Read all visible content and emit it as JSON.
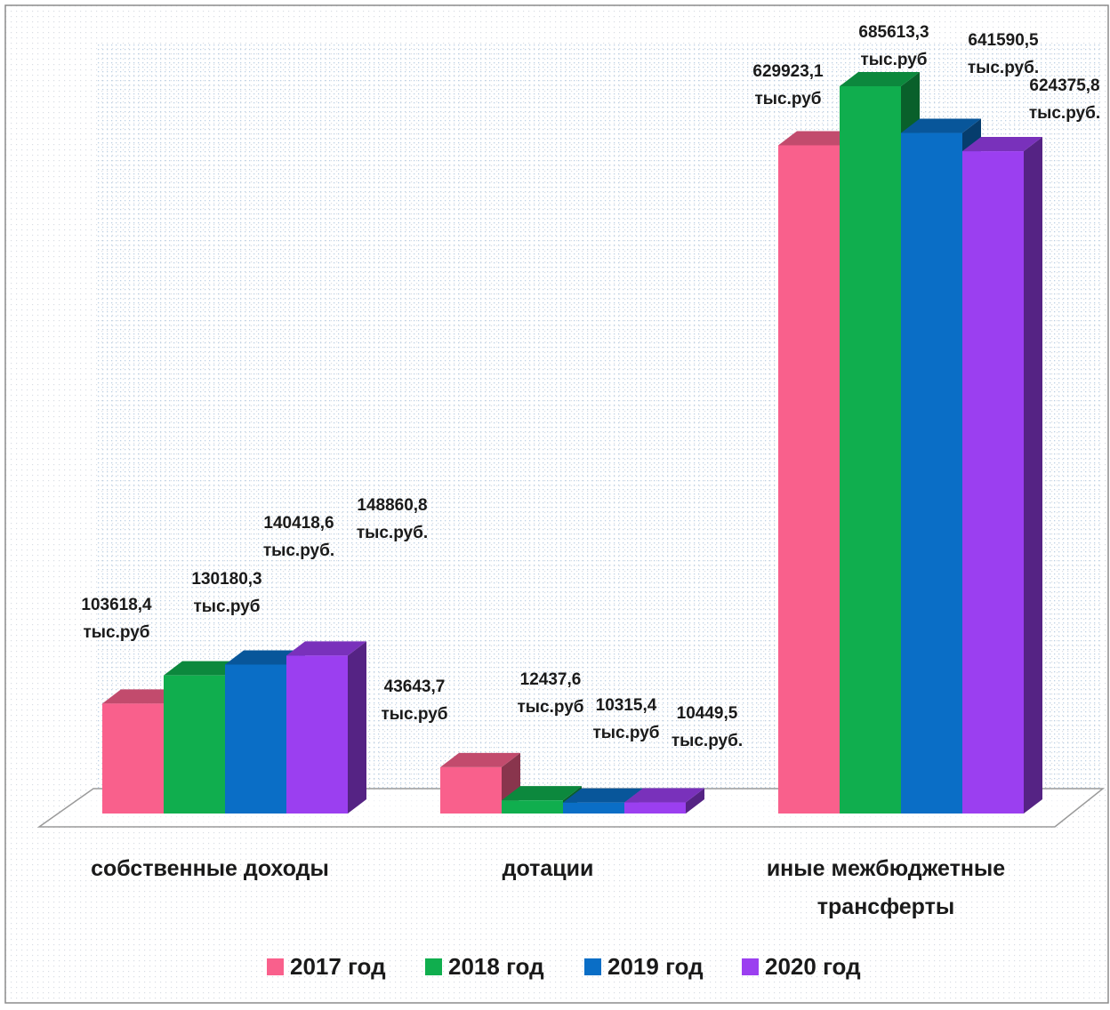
{
  "chart_data": {
    "type": "bar",
    "categories": [
      "собственные доходы",
      "дотации",
      "иные межбюджетные трансферты"
    ],
    "category_lines": [
      [
        "собственные доходы"
      ],
      [
        "дотации"
      ],
      [
        "иные межбюджетные",
        "трансферты"
      ]
    ],
    "series": [
      {
        "name": "2017 год",
        "color": "#F9608C",
        "values": [
          103618.4,
          43643.7,
          629923.1
        ],
        "labels": [
          [
            "103618,4",
            "тыс.руб"
          ],
          [
            "43643,7",
            "тыс.руб"
          ],
          [
            "629923,1",
            "тыс.руб"
          ]
        ]
      },
      {
        "name": "2018 год",
        "color": "#10AE4E",
        "values": [
          130180.3,
          12437.6,
          685613.3
        ],
        "labels": [
          [
            "130180,3",
            "тыс.руб"
          ],
          [
            "12437,6",
            "тыс.руб"
          ],
          [
            "685613,3",
            "тыс.руб"
          ]
        ]
      },
      {
        "name": "2019 год",
        "color": "#0A6EC6",
        "values": [
          140418.6,
          10315.4,
          641590.5
        ],
        "labels": [
          [
            "140418,6",
            "тыс.руб."
          ],
          [
            "10315,4",
            "тыс.руб"
          ],
          [
            "641590,5",
            "тыс.руб."
          ]
        ]
      },
      {
        "name": "2020 год",
        "color": "#9B3FF0",
        "values": [
          148860.8,
          10449.5,
          624375.8
        ],
        "labels": [
          [
            "148860,8",
            "тыс.руб."
          ],
          [
            "10449,5",
            "тыс.руб."
          ],
          [
            "624375,8",
            "тыс.руб."
          ]
        ]
      }
    ],
    "ylim": [
      0,
      700000
    ],
    "legend_position": "bottom",
    "grid": false,
    "style": "3d-clustered-column"
  }
}
